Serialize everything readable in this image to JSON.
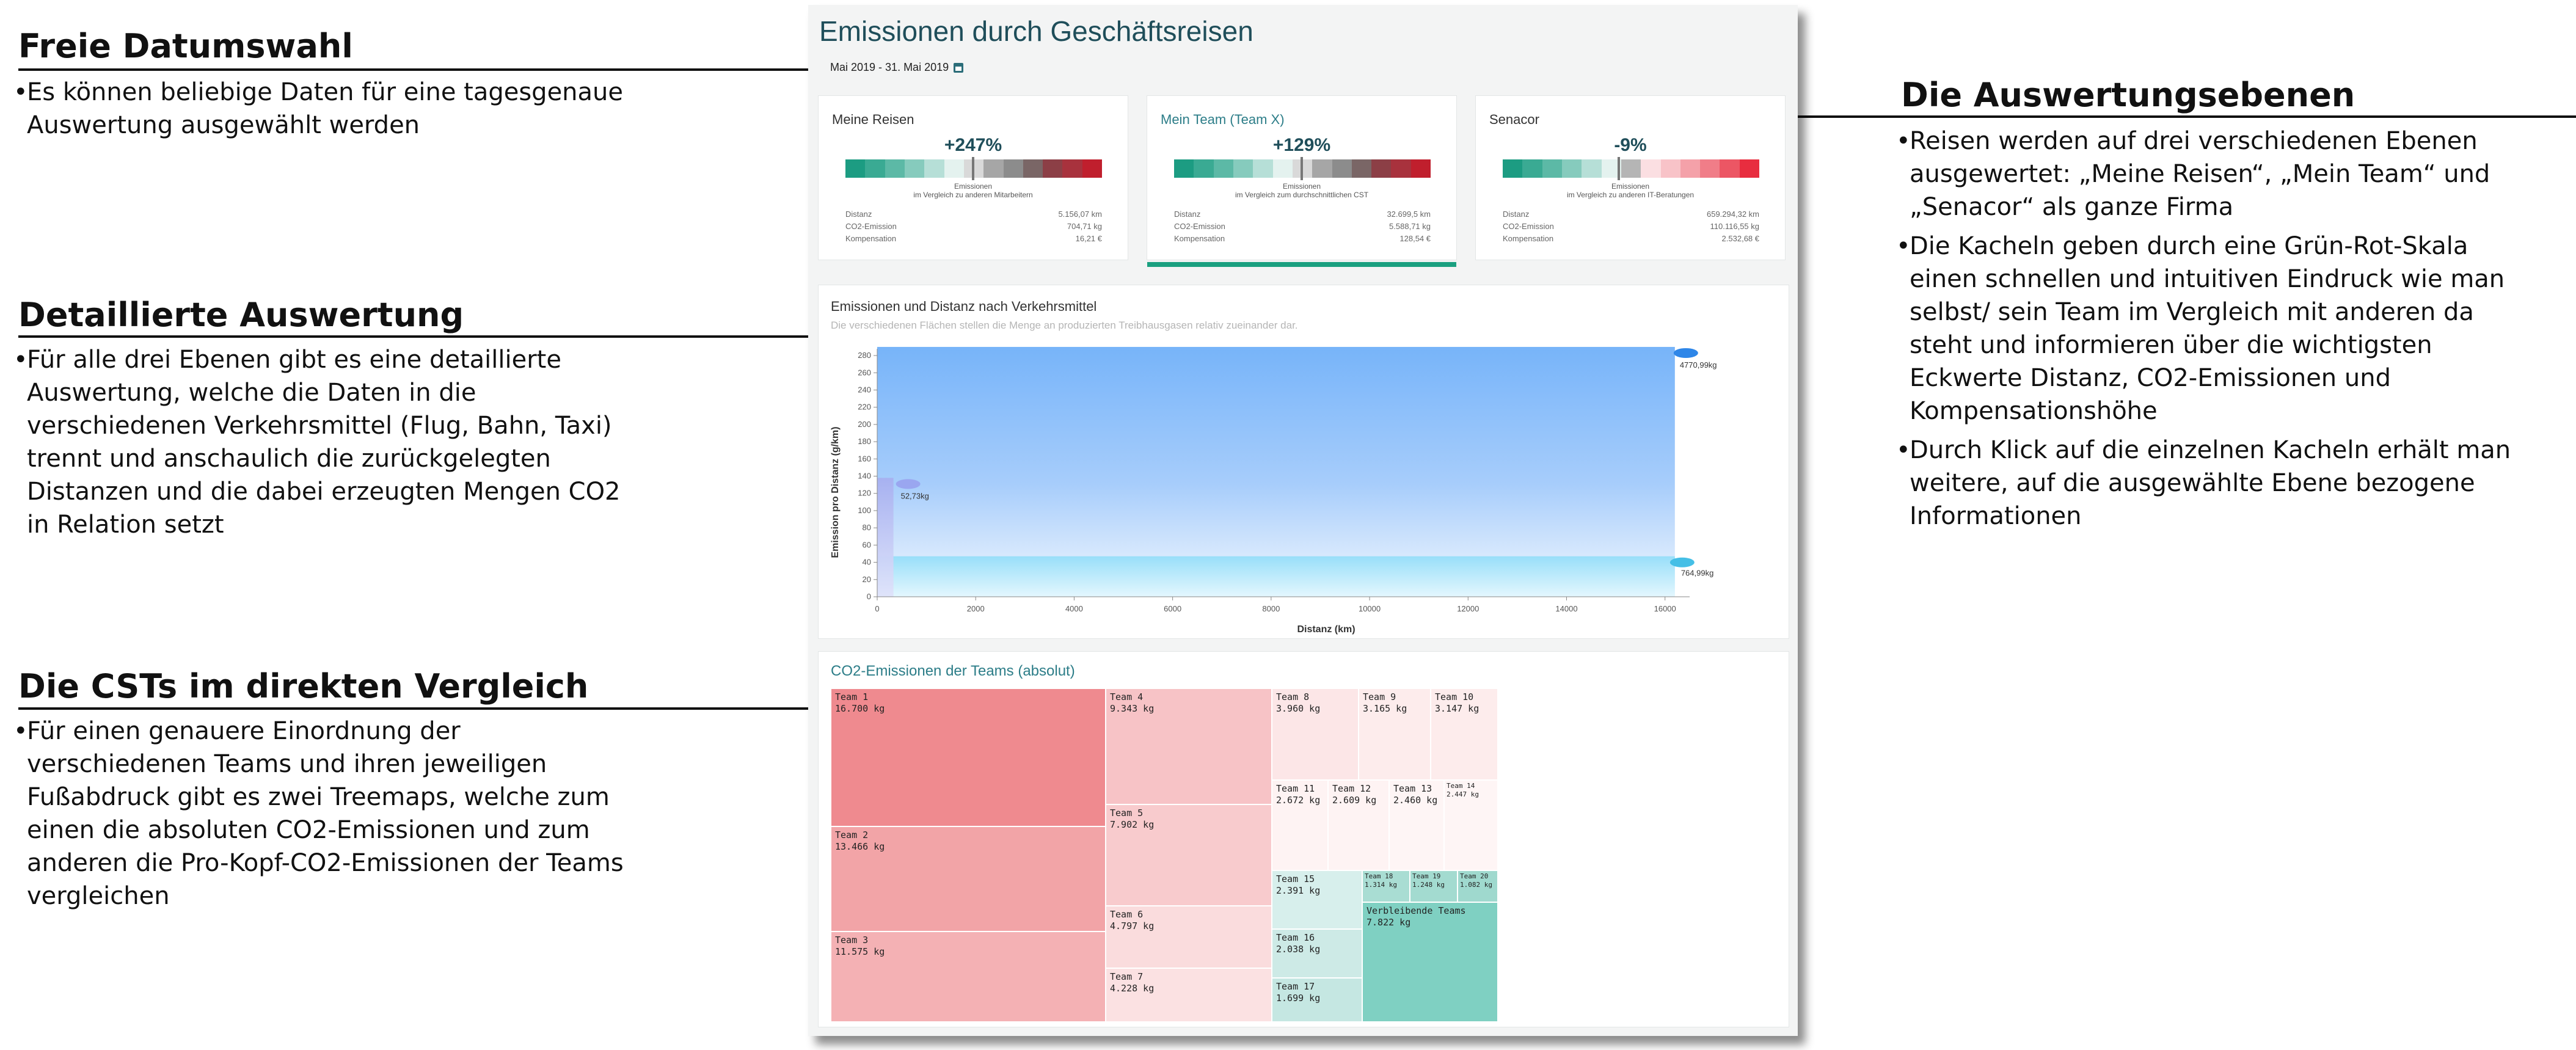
{
  "annotations": {
    "left": [
      {
        "title": "Freie Datumswahl",
        "bullets": [
          "Es können beliebige Daten für eine tagesgenaue\nAuswertung ausgewählt werden"
        ]
      },
      {
        "title": "Detaillierte Auswertung",
        "bullets": [
          "Für alle drei Ebenen gibt es eine detaillierte\nAuswertung, welche die Daten in die\nverschiedenen Verkehrsmittel (Flug, Bahn, Taxi)\ntrennt und anschaulich die zurückgelegten\nDistanzen und die dabei erzeugten Mengen CO2\nin Relation setzt"
        ]
      },
      {
        "title": "Die CSTs im direkten Vergleich",
        "bullets": [
          "Für einen genauere Einordnung der\nverschiedenen Teams und ihren jeweiligen\nFußabdruck gibt es zwei Treemaps, welche zum\neinen die absoluten CO2-Emissionen und zum\nanderen die Pro-Kopf-CO2-Emissionen der Teams\nvergleichen"
        ]
      }
    ],
    "right": {
      "title": "Die Auswertungsebenen",
      "bullets": [
        "Reisen werden auf drei verschiedenen Ebenen\nausgewertet: „Meine Reisen“, „Mein Team“ und\n„Senacor“ als ganze Firma",
        "Die Kacheln geben durch eine Grün-Rot-Skala\neinen schnellen und intuitiven Eindruck wie man\nselbst/ sein Team im Vergleich mit anderen da\nsteht und informieren über die wichtigsten\nEckwerte Distanz, CO2-Emissionen und\nKompensationshöhe",
        "Durch Klick auf die einzelnen Kacheln erhält man\nweitere, auf die ausgewählte Ebene bezogene\nInformationen"
      ]
    }
  },
  "app": {
    "title": "Emissionen durch Geschäftsreisen",
    "date_range": "Mai 2019 - 31. Mai 2019",
    "calendar_icon": "calendar-icon",
    "tiles": [
      {
        "label": "Meine Reisen",
        "percent": "+247%",
        "marker_fraction": 0.5,
        "scale": "green-red",
        "sub": "Emissionen\nim Vergleich zu anderen Mitarbeitern",
        "rows": [
          [
            "Distanz",
            "5.156,07 km"
          ],
          [
            "CO2-Emission",
            "704,71 kg"
          ],
          [
            "Kompensation",
            "16,21 €"
          ]
        ],
        "active": false
      },
      {
        "label": "Mein Team (Team X)",
        "percent": "+129%",
        "marker_fraction": 0.5,
        "scale": "green-red",
        "sub": "Emissionen\nim Vergleich zum durchschnittlichen CST",
        "rows": [
          [
            "Distanz",
            "32.699,5 km"
          ],
          [
            "CO2-Emission",
            "5.588,71 kg"
          ],
          [
            "Kompensation",
            "128,54 €"
          ]
        ],
        "active": true
      },
      {
        "label": "Senacor",
        "percent": "-9%",
        "marker_fraction": 0.5,
        "scale": "green-pink",
        "sub": "Emissionen\nim Vergleich zu anderen IT-Beratungen",
        "rows": [
          [
            "Distanz",
            "659.294,32 km"
          ],
          [
            "CO2-Emission",
            "110.116,55 kg"
          ],
          [
            "Kompensation",
            "2.532,68 €"
          ]
        ],
        "active": false
      }
    ],
    "colors": {
      "accent": "#1aa080",
      "title": "#1f4e5a",
      "flight_area": "#7fbafb",
      "rail_area": "#a8e4fb"
    },
    "distance_chart": {
      "title": "Emissionen und Distanz nach Verkehrsmittel",
      "subtitle": "Die verschiedenen Flächen stellen die Menge an produzierten Treibhausgasen relativ zueinander dar."
    },
    "treemap": {
      "title": "CO2-Emissionen der Teams (absolut)",
      "cells": [
        {
          "name": "Team 1",
          "value": "16.700 kg",
          "color": "#ef8a8f"
        },
        {
          "name": "Team 2",
          "value": "13.466 kg",
          "color": "#f2a4a7"
        },
        {
          "name": "Team 3",
          "value": "11.575 kg",
          "color": "#f4b1b4"
        },
        {
          "name": "Team 4",
          "value": "9.343 kg",
          "color": "#f7c3c6"
        },
        {
          "name": "Team 5",
          "value": "7.902 kg",
          "color": "#f8cbcd"
        },
        {
          "name": "Team 6",
          "value": "4.797 kg",
          "color": "#fadcdd"
        },
        {
          "name": "Team 7",
          "value": "4.228 kg",
          "color": "#fbe1e2"
        },
        {
          "name": "Team 8",
          "value": "3.960 kg",
          "color": "#fce6e7"
        },
        {
          "name": "Team 9",
          "value": "3.165 kg",
          "color": "#fdecec"
        },
        {
          "name": "Team 10",
          "value": "3.147 kg",
          "color": "#fdecec"
        },
        {
          "name": "Team 11",
          "value": "2.672 kg",
          "color": "#fef3f3"
        },
        {
          "name": "Team 12",
          "value": "2.609 kg",
          "color": "#fef3f3"
        },
        {
          "name": "Team 13",
          "value": "2.460 kg",
          "color": "#fef5f5"
        },
        {
          "name": "Team 14",
          "value": "2.447 kg",
          "color": "#fef5f5"
        },
        {
          "name": "Team 15",
          "value": "2.391 kg",
          "color": "#d7efec"
        },
        {
          "name": "Team 16",
          "value": "2.038 kg",
          "color": "#cdeae6"
        },
        {
          "name": "Team 17",
          "value": "1.699 kg",
          "color": "#c5e7e2"
        },
        {
          "name": "Team 18",
          "value": "1.314 kg",
          "color": "#a9ddd3"
        },
        {
          "name": "Team 19",
          "value": "1.248 kg",
          "color": "#a3dbd0"
        },
        {
          "name": "Team 20",
          "value": "1.082 kg",
          "color": "#9fd9ce"
        },
        {
          "name": "Verbleibende Teams",
          "value": "7.822 kg",
          "color": "#7fd0c2"
        }
      ]
    }
  },
  "chart_data": {
    "type": "area",
    "title": "Emissionen und Distanz nach Verkehrsmittel",
    "subtitle": "Die verschiedenen Flächen stellen die Menge an produzierten Treibhausgasen relativ zueinander dar.",
    "xlabel": "Distanz (km)",
    "ylabel": "Emission pro Distanz (g/km)",
    "xlim": [
      0,
      16500
    ],
    "ylim": [
      0,
      285
    ],
    "x_ticks": [
      0,
      2000,
      4000,
      6000,
      8000,
      10000,
      12000,
      14000,
      16000
    ],
    "y_ticks": [
      0,
      20,
      40,
      60,
      80,
      100,
      120,
      140,
      160,
      180,
      200,
      220,
      240,
      260,
      280
    ],
    "grid": false,
    "series": [
      {
        "icon": "plane-icon",
        "label": "4770,99kg",
        "distance": 16200,
        "emission_per_km": 290,
        "color": "#7fbafb"
      },
      {
        "icon": "train-icon",
        "label": "764,99kg",
        "distance": 16200,
        "emission_per_km": 47,
        "color": "#a8e4fb"
      },
      {
        "icon": "taxi-icon",
        "label": "52,73kg",
        "distance": 330,
        "emission_per_km": 138,
        "color": "#aab6f4"
      }
    ]
  }
}
